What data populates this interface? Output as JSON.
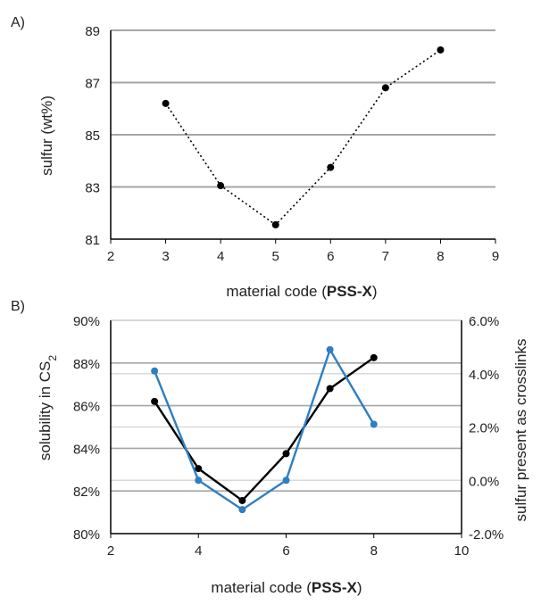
{
  "chart_data": [
    {
      "type": "line",
      "panel_label": "A)",
      "xlabel_prefix": "material code (",
      "xlabel_bold": "PSS-X",
      "xlabel_suffix": ")",
      "ylabel": "sulfur (wt%)",
      "xlim": [
        2,
        9
      ],
      "ylim": [
        81,
        89
      ],
      "x_ticks": [
        2,
        3,
        4,
        5,
        6,
        7,
        8,
        9
      ],
      "y_ticks": [
        81,
        83,
        85,
        87,
        89
      ],
      "grid": "horizontal",
      "series": [
        {
          "x": [
            3,
            4,
            5,
            6,
            7,
            8
          ],
          "values": [
            86.2,
            83.05,
            81.55,
            83.75,
            86.8,
            88.25
          ],
          "style": "dotted",
          "color": "#000000"
        }
      ]
    },
    {
      "type": "line",
      "panel_label": "B)",
      "xlabel_prefix": "material code (",
      "xlabel_bold": "PSS-X",
      "xlabel_suffix": ")",
      "ylabel_main": "solubility in CS",
      "ylabel_sub": "2",
      "y2label": "sulfur present as crosslinks",
      "xlim": [
        2,
        10
      ],
      "ylim": [
        80,
        90
      ],
      "y2lim": [
        -2.0,
        6.0
      ],
      "x_ticks": [
        2,
        4,
        6,
        8,
        10
      ],
      "y_ticks": [
        "80%",
        "82%",
        "84%",
        "86%",
        "88%",
        "90%"
      ],
      "y2_ticks": [
        "-2.0%",
        "0.0%",
        "2.0%",
        "4.0%",
        "6.0%"
      ],
      "grid": "horizontal",
      "series": [
        {
          "axis": "left",
          "x": [
            3,
            4,
            5,
            6,
            7,
            8
          ],
          "values": [
            86.2,
            83.05,
            81.55,
            83.75,
            86.8,
            88.25
          ],
          "color": "#000000"
        },
        {
          "axis": "right",
          "x": [
            3,
            4,
            5,
            6,
            7,
            8
          ],
          "values": [
            4.1,
            0.0,
            -1.1,
            0.0,
            4.9,
            2.1
          ],
          "color": "#2e7ec2"
        }
      ]
    }
  ]
}
